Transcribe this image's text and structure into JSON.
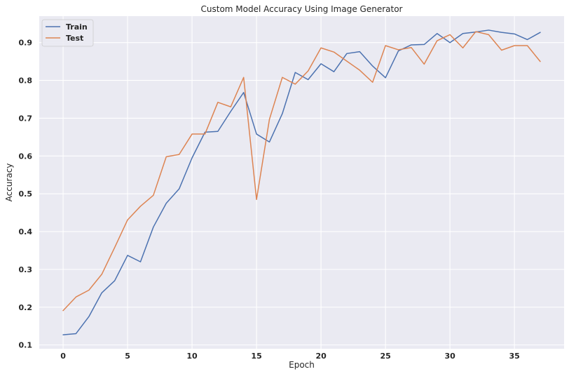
{
  "chart_data": {
    "type": "line",
    "title": "Custom Model Accuracy Using Image Generator",
    "xlabel": "Epoch",
    "ylabel": "Accuracy",
    "xlim": [
      -1.85,
      38.85
    ],
    "ylim": [
      0.09,
      0.97
    ],
    "xticks": [
      0,
      5,
      10,
      15,
      20,
      25,
      30,
      35
    ],
    "yticks": [
      0.1,
      0.2,
      0.3,
      0.4,
      0.5,
      0.6,
      0.7,
      0.8,
      0.9
    ],
    "grid": true,
    "legend": "top-left",
    "x": [
      0,
      1,
      2,
      3,
      4,
      5,
      6,
      7,
      8,
      9,
      10,
      11,
      12,
      13,
      14,
      15,
      16,
      17,
      18,
      19,
      20,
      21,
      22,
      23,
      24,
      25,
      26,
      27,
      28,
      29,
      30,
      31,
      32,
      33,
      34,
      35,
      36,
      37
    ],
    "series": [
      {
        "name": "Train",
        "color": "#4c72b0",
        "values": [
          0.127,
          0.13,
          0.175,
          0.238,
          0.27,
          0.337,
          0.32,
          0.412,
          0.475,
          0.513,
          0.595,
          0.663,
          0.665,
          0.718,
          0.768,
          0.658,
          0.637,
          0.712,
          0.821,
          0.802,
          0.844,
          0.823,
          0.871,
          0.876,
          0.838,
          0.807,
          0.878,
          0.894,
          0.895,
          0.924,
          0.9,
          0.924,
          0.928,
          0.933,
          0.927,
          0.923,
          0.908,
          0.927
        ]
      },
      {
        "name": "Test",
        "color": "#dd8452",
        "values": [
          0.191,
          0.227,
          0.245,
          0.287,
          0.358,
          0.431,
          0.467,
          0.496,
          0.598,
          0.604,
          0.658,
          0.658,
          0.742,
          0.73,
          0.808,
          0.485,
          0.697,
          0.808,
          0.79,
          0.825,
          0.886,
          0.875,
          0.851,
          0.827,
          0.795,
          0.892,
          0.881,
          0.887,
          0.843,
          0.905,
          0.921,
          0.886,
          0.929,
          0.921,
          0.88,
          0.892,
          0.892,
          0.85
        ]
      }
    ]
  }
}
